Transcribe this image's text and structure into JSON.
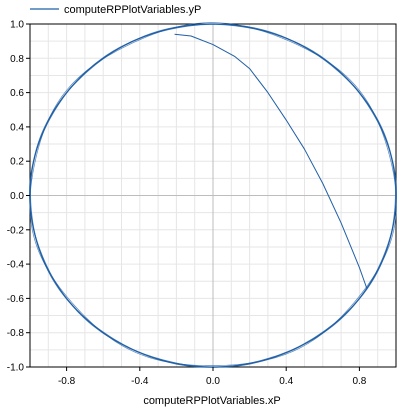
{
  "chart_data": {
    "type": "line",
    "title": "",
    "xlabel": "computeRPPlotVariables.xP",
    "ylabel": "",
    "xlim": [
      -1.0,
      1.0
    ],
    "ylim": [
      -1.0,
      1.0
    ],
    "x_ticks": [
      "-0.8",
      "-0.4",
      "0.0",
      "0.4",
      "0.8"
    ],
    "y_ticks": [
      "1.0",
      "0.8",
      "0.6",
      "0.4",
      "0.2",
      "0.0",
      "-0.2",
      "-0.4",
      "-0.6",
      "-0.8",
      "-1.0"
    ],
    "grid": true,
    "zero_lines": true,
    "legend_position": "top-left",
    "series": [
      {
        "name": "computeRPPlotVariables.yP",
        "color": "#1f5fa6",
        "circle_radius": 1.0,
        "arc": [
          [
            -0.21,
            0.94
          ],
          [
            -0.12,
            0.93
          ],
          [
            0.0,
            0.88
          ],
          [
            0.12,
            0.81
          ],
          [
            0.2,
            0.74
          ],
          [
            0.3,
            0.6
          ],
          [
            0.4,
            0.44
          ],
          [
            0.5,
            0.27
          ],
          [
            0.6,
            0.07
          ],
          [
            0.7,
            -0.16
          ],
          [
            0.8,
            -0.42
          ],
          [
            0.84,
            -0.54
          ]
        ]
      }
    ]
  }
}
